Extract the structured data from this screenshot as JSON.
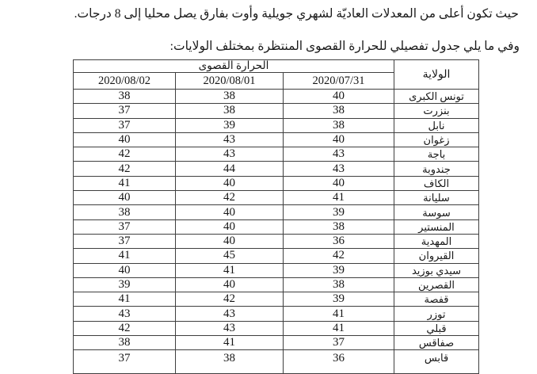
{
  "document": {
    "paragraph_line1": "حيث تكون أعلى من المعدلات العاديّة لشهري جويلية وأوت بفارق يصل محليا إلى 8 درجات.",
    "paragraph_line2": "وفي ما يلي جدول تفصيلي للحرارة القصوى المنتظرة بمختلف الولايات:"
  },
  "table": {
    "title": "الحرارة القصوى",
    "state_column_header": "الولاية",
    "date_columns": [
      "2020/07/31",
      "2020/08/01",
      "2020/08/02"
    ],
    "rows": [
      {
        "state": "تونس الكبرى",
        "temps": [
          "40",
          "38",
          "38"
        ]
      },
      {
        "state": "بنزرت",
        "temps": [
          "38",
          "38",
          "37"
        ]
      },
      {
        "state": "نابل",
        "temps": [
          "38",
          "39",
          "37"
        ]
      },
      {
        "state": "زغوان",
        "temps": [
          "40",
          "43",
          "40"
        ]
      },
      {
        "state": "باجة",
        "temps": [
          "43",
          "43",
          "42"
        ]
      },
      {
        "state": "جندوبة",
        "temps": [
          "43",
          "44",
          "42"
        ]
      },
      {
        "state": "الكاف",
        "temps": [
          "40",
          "40",
          "41"
        ]
      },
      {
        "state": "سليانة",
        "temps": [
          "41",
          "42",
          "40"
        ]
      },
      {
        "state": "سوسة",
        "temps": [
          "39",
          "40",
          "38"
        ]
      },
      {
        "state": "المنستير",
        "temps": [
          "38",
          "40",
          "37"
        ]
      },
      {
        "state": "المهدية",
        "temps": [
          "36",
          "40",
          "37"
        ]
      },
      {
        "state": "القيروان",
        "temps": [
          "42",
          "45",
          "41"
        ]
      },
      {
        "state": "سيدي بوزيد",
        "temps": [
          "39",
          "41",
          "40"
        ]
      },
      {
        "state": "القصرين",
        "temps": [
          "38",
          "40",
          "39"
        ]
      },
      {
        "state": "قفصة",
        "temps": [
          "39",
          "42",
          "41"
        ]
      },
      {
        "state": "توزر",
        "temps": [
          "41",
          "43",
          "43"
        ]
      },
      {
        "state": "قبلي",
        "temps": [
          "41",
          "43",
          "42"
        ]
      },
      {
        "state": "صفاقس",
        "temps": [
          "37",
          "41",
          "38"
        ]
      },
      {
        "state": "قابس",
        "temps": [
          "36",
          "38",
          "37"
        ]
      }
    ]
  },
  "colors": {
    "text": "#1a1a1a",
    "border": "#3f3f3f",
    "background": "#ffffff"
  }
}
